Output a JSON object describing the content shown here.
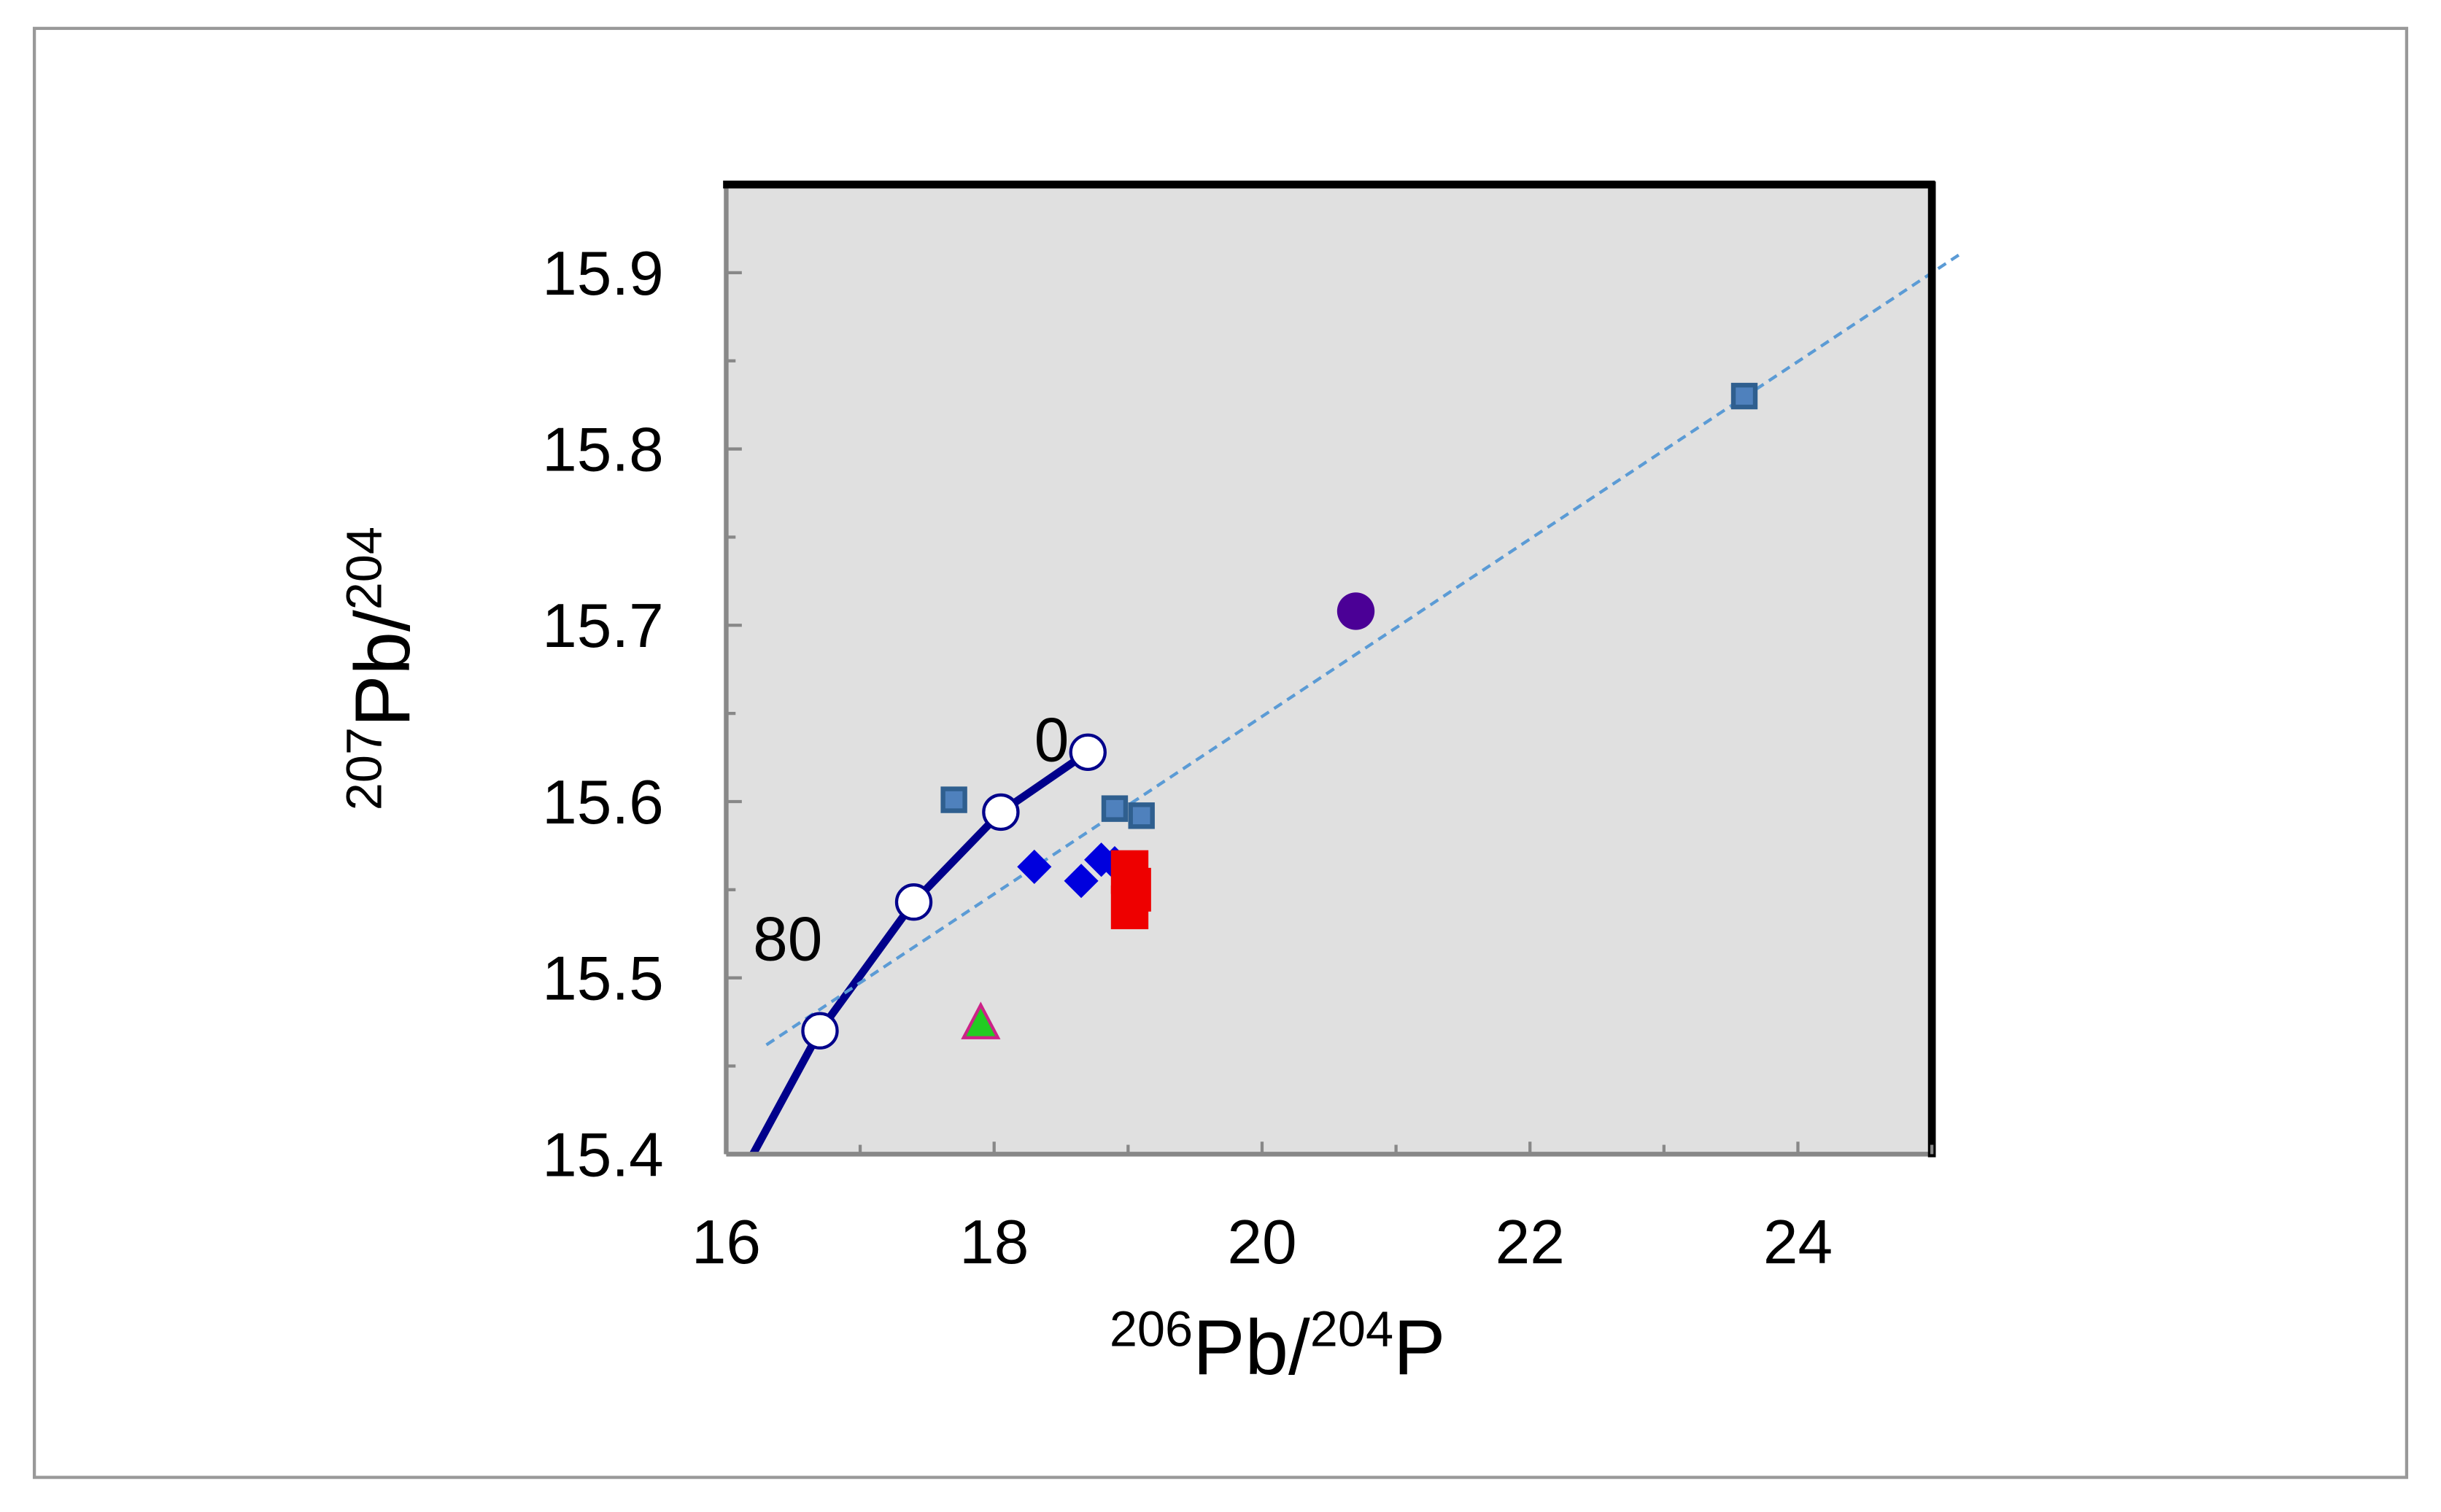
{
  "chart_data": {
    "type": "scatter",
    "xlabel": [
      "206",
      "Pb/",
      "204",
      "P"
    ],
    "ylabel": [
      "207",
      "Pb/",
      "204"
    ],
    "xlim": [
      16,
      25
    ],
    "ylim": [
      15.4,
      15.95
    ],
    "xticks": [
      16,
      18,
      20,
      22,
      24
    ],
    "xminor": [
      17,
      19,
      21,
      23,
      25
    ],
    "yticks": [
      15.4,
      15.5,
      15.6,
      15.7,
      15.8,
      15.9
    ],
    "yminor": [
      15.45,
      15.55,
      15.65,
      15.75,
      15.85
    ],
    "annotations": [
      {
        "text": "0",
        "x": 18.3,
        "y": 15.623
      },
      {
        "text": "80",
        "x": 16.2,
        "y": 15.51
      }
    ],
    "series": [
      {
        "line": "solid",
        "color": "#00008b",
        "x": [
          16.2,
          16.7,
          17.4,
          18.05,
          18.7
        ],
        "y": [
          15.4,
          15.47,
          15.543,
          15.594,
          15.628
        ]
      },
      {
        "line": "dashed",
        "color": "#5b9bd5",
        "x": [
          16.3,
          25.2
        ],
        "y": [
          15.462,
          15.91
        ]
      },
      {
        "marker": "circle-open",
        "color": "#00008b",
        "x": [
          16.7,
          17.4,
          18.05,
          18.7
        ],
        "y": [
          15.47,
          15.543,
          15.594,
          15.628
        ]
      },
      {
        "marker": "square",
        "color": "#4f81bd",
        "x": [
          17.7,
          18.9,
          19.1,
          23.6
        ],
        "y": [
          15.601,
          15.596,
          15.592,
          15.83
        ]
      },
      {
        "marker": "circle",
        "color": "#4b0096",
        "x": [
          20.7
        ],
        "y": [
          15.708
        ]
      },
      {
        "marker": "diamond",
        "color": "#0000dd",
        "x": [
          18.3,
          18.65,
          18.8,
          18.9
        ],
        "y": [
          15.563,
          15.555,
          15.567,
          15.565
        ]
      },
      {
        "marker": "rect",
        "color": "#ee0000",
        "x": [
          19.0,
          19.02,
          19.0
        ],
        "y": [
          15.56,
          15.55,
          15.54
        ]
      },
      {
        "marker": "triangle",
        "color": "#22cc22",
        "x": [
          17.9
        ],
        "y": [
          15.474
        ]
      }
    ]
  }
}
